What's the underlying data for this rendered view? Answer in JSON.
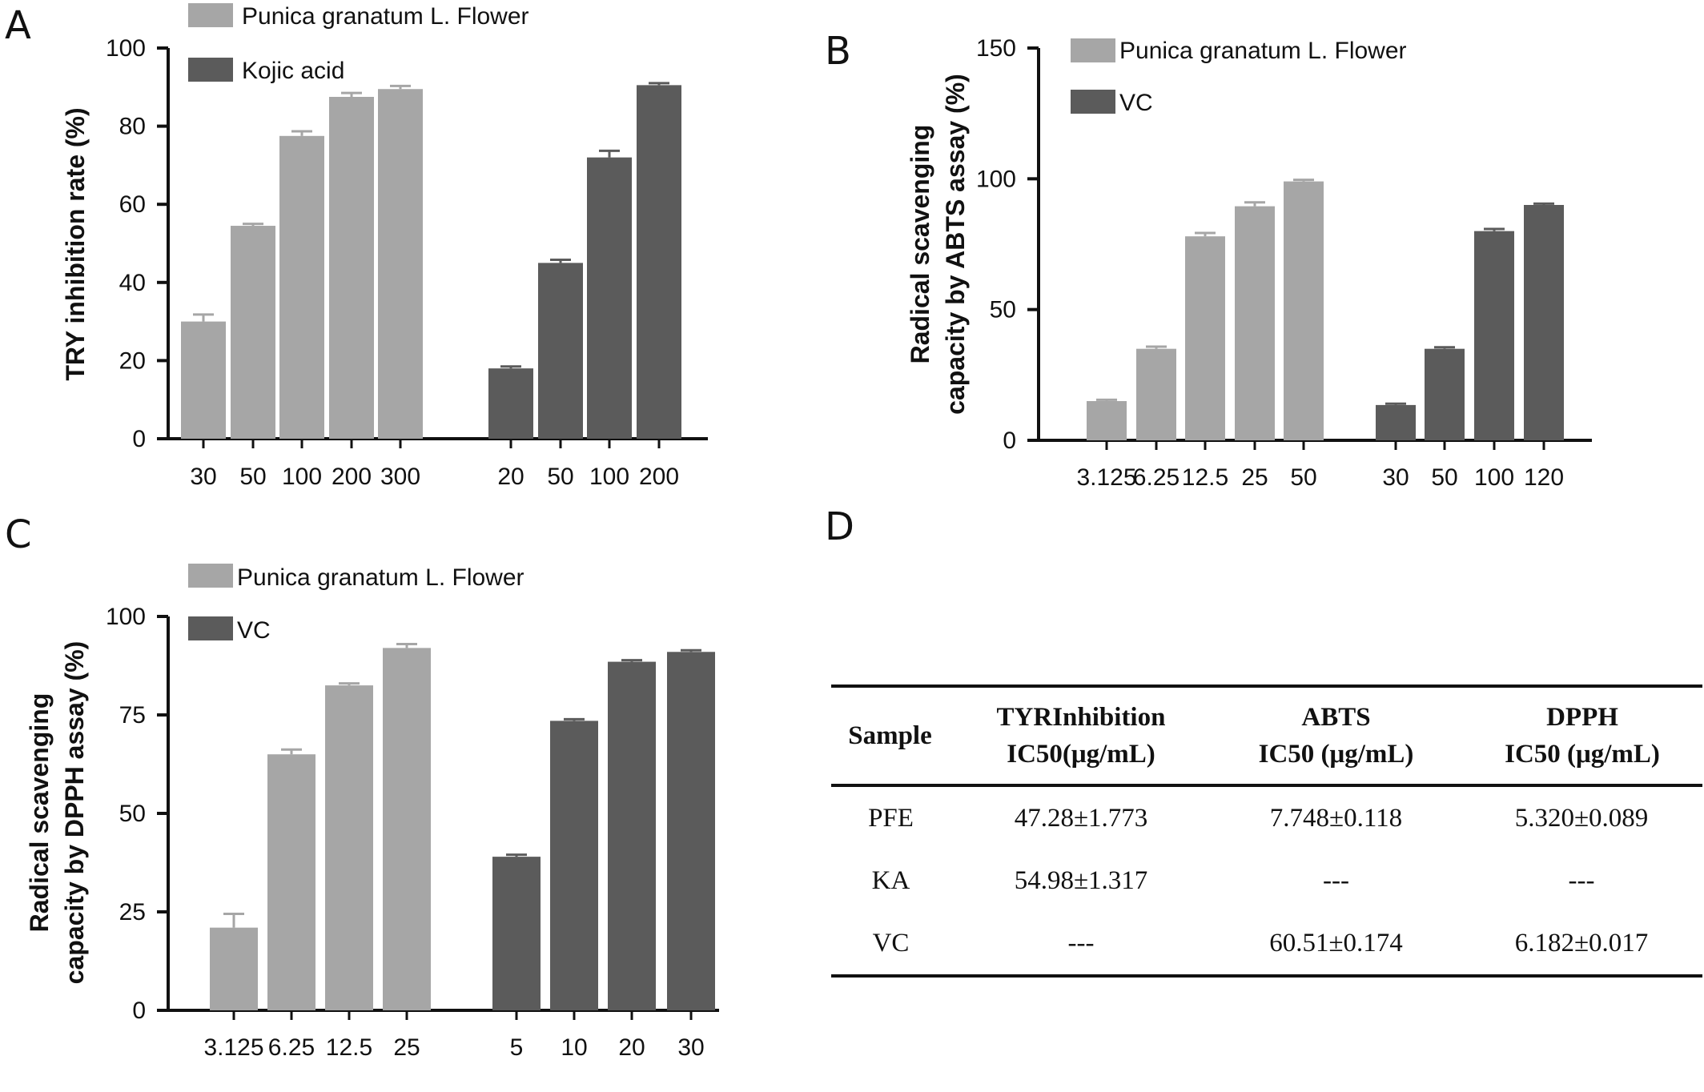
{
  "panels": {
    "a": "A",
    "b": "B",
    "c": "C",
    "d": "D"
  },
  "colors": {
    "light": "#a6a6a6",
    "dark": "#5b5b5b",
    "axis": "#111111"
  },
  "chart_data": [
    {
      "id": "A",
      "type": "bar",
      "ylabel": "TRY inhibition rate (%)",
      "ylim": [
        0,
        100
      ],
      "yticks": [
        0,
        20,
        40,
        60,
        80,
        100
      ],
      "series": [
        {
          "name": "Punica granatum L. Flower",
          "color": "#a6a6a6",
          "categories": [
            "30",
            "50",
            "100",
            "200",
            "300"
          ],
          "values": [
            30,
            54.5,
            77.5,
            87.5,
            89.5
          ],
          "errors": [
            1.8,
            0.5,
            1.2,
            1.0,
            0.8
          ]
        },
        {
          "name": "Kojic acid",
          "color": "#5b5b5b",
          "categories": [
            "20",
            "50",
            "100",
            "200"
          ],
          "values": [
            18,
            45,
            72,
            90.5
          ],
          "errors": [
            0.5,
            0.8,
            1.7,
            0.5
          ]
        }
      ]
    },
    {
      "id": "B",
      "type": "bar",
      "ylabel": "Radical scavenging capacity by ABTS assay (%)",
      "ylim": [
        0,
        150
      ],
      "yticks": [
        0,
        50,
        100,
        150
      ],
      "series": [
        {
          "name": "Punica granatum L. Flower",
          "color": "#a6a6a6",
          "categories": [
            "3.125",
            "6.25",
            "12.5",
            "25",
            "50"
          ],
          "values": [
            15,
            35,
            78,
            89.5,
            99
          ],
          "errors": [
            0.5,
            0.8,
            1.3,
            1.5,
            0.6
          ]
        },
        {
          "name": "VC",
          "color": "#5b5b5b",
          "categories": [
            "30",
            "50",
            "100",
            "120"
          ],
          "values": [
            13.5,
            35,
            80,
            90
          ],
          "errors": [
            0.5,
            0.6,
            0.8,
            0.5
          ]
        }
      ]
    },
    {
      "id": "C",
      "type": "bar",
      "ylabel": "Radical scavenging capacity by DPPH assay (%)",
      "ylim": [
        0,
        100
      ],
      "yticks": [
        0,
        25,
        50,
        75,
        100
      ],
      "series": [
        {
          "name": "Punica granatum L. Flower",
          "color": "#a6a6a6",
          "categories": [
            "3.125",
            "6.25",
            "12.5",
            "25"
          ],
          "values": [
            21,
            65,
            82.5,
            92
          ],
          "errors": [
            3.5,
            1.2,
            0.5,
            1.0
          ]
        },
        {
          "name": "VC",
          "color": "#5b5b5b",
          "categories": [
            "5",
            "10",
            "20",
            "30"
          ],
          "values": [
            39,
            73.5,
            88.5,
            91
          ],
          "errors": [
            0.5,
            0.4,
            0.4,
            0.4
          ]
        }
      ]
    }
  ],
  "table": {
    "header": [
      {
        "line1": "Sample",
        "line2": ""
      },
      {
        "line1": "TYRInhibition",
        "line2": "IC50(μg/mL)"
      },
      {
        "line1": "ABTS",
        "line2": "IC50 (μg/mL)"
      },
      {
        "line1": "DPPH",
        "line2": "IC50 (μg/mL)"
      }
    ],
    "rows": [
      [
        "PFE",
        "47.28±1.773",
        "7.748±0.118",
        "5.320±0.089"
      ],
      [
        "KA",
        "54.98±1.317",
        "---",
        "---"
      ],
      [
        "VC",
        "---",
        "60.51±0.174",
        "6.182±0.017"
      ]
    ]
  }
}
